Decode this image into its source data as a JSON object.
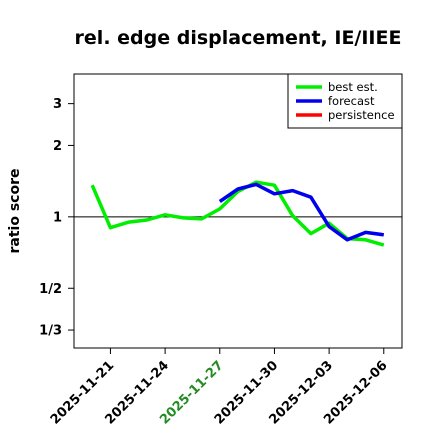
{
  "chart_data": {
    "type": "line",
    "title": "rel. edge displacement, IE/IIEE",
    "xlabel": "",
    "ylabel": "ratio score",
    "y_scale": "log",
    "ylim": [
      0.28,
      4.0
    ],
    "y_ticks": [
      {
        "value": 0.3333,
        "label": "1/3"
      },
      {
        "value": 0.5,
        "label": "1/2"
      },
      {
        "value": 1,
        "label": "1"
      },
      {
        "value": 2,
        "label": "2"
      },
      {
        "value": 3,
        "label": "3"
      }
    ],
    "reference_line": 1,
    "xlim": [
      "2025-11-19",
      "2025-12-07"
    ],
    "x_ticks": [
      {
        "date": "2025-11-21",
        "label": "2025-11-21",
        "color": "#000000"
      },
      {
        "date": "2025-11-24",
        "label": "2025-11-24",
        "color": "#000000"
      },
      {
        "date": "2025-11-27",
        "label": "2025-11-27",
        "color": "#228B22"
      },
      {
        "date": "2025-11-30",
        "label": "2025-11-30",
        "color": "#000000"
      },
      {
        "date": "2025-12-03",
        "label": "2025-12-03",
        "color": "#000000"
      },
      {
        "date": "2025-12-06",
        "label": "2025-12-06",
        "color": "#000000"
      }
    ],
    "legend_position": "top-right",
    "series": [
      {
        "name": "best est.",
        "color": "#00ee00",
        "points": [
          {
            "x": "2025-11-20",
            "y": 1.36
          },
          {
            "x": "2025-11-21",
            "y": 0.9
          },
          {
            "x": "2025-11-22",
            "y": 0.95
          },
          {
            "x": "2025-11-23",
            "y": 0.97
          },
          {
            "x": "2025-11-24",
            "y": 1.02
          },
          {
            "x": "2025-11-25",
            "y": 0.99
          },
          {
            "x": "2025-11-26",
            "y": 0.98
          },
          {
            "x": "2025-11-27",
            "y": 1.08
          },
          {
            "x": "2025-11-28",
            "y": 1.28
          },
          {
            "x": "2025-11-29",
            "y": 1.4
          },
          {
            "x": "2025-11-30",
            "y": 1.36
          },
          {
            "x": "2025-12-01",
            "y": 1.01
          },
          {
            "x": "2025-12-02",
            "y": 0.85
          },
          {
            "x": "2025-12-03",
            "y": 0.94
          },
          {
            "x": "2025-12-04",
            "y": 0.81
          },
          {
            "x": "2025-12-05",
            "y": 0.8
          },
          {
            "x": "2025-12-06",
            "y": 0.76
          }
        ]
      },
      {
        "name": "forecast",
        "color": "#0000ee",
        "points": [
          {
            "x": "2025-11-27",
            "y": 1.16
          },
          {
            "x": "2025-11-28",
            "y": 1.31
          },
          {
            "x": "2025-11-29",
            "y": 1.37
          },
          {
            "x": "2025-11-30",
            "y": 1.25
          },
          {
            "x": "2025-12-01",
            "y": 1.29
          },
          {
            "x": "2025-12-02",
            "y": 1.21
          },
          {
            "x": "2025-12-03",
            "y": 0.91
          },
          {
            "x": "2025-12-04",
            "y": 0.8
          },
          {
            "x": "2025-12-05",
            "y": 0.86
          },
          {
            "x": "2025-12-06",
            "y": 0.84
          }
        ]
      },
      {
        "name": "persistence",
        "color": "#ff0000",
        "points": []
      }
    ]
  }
}
